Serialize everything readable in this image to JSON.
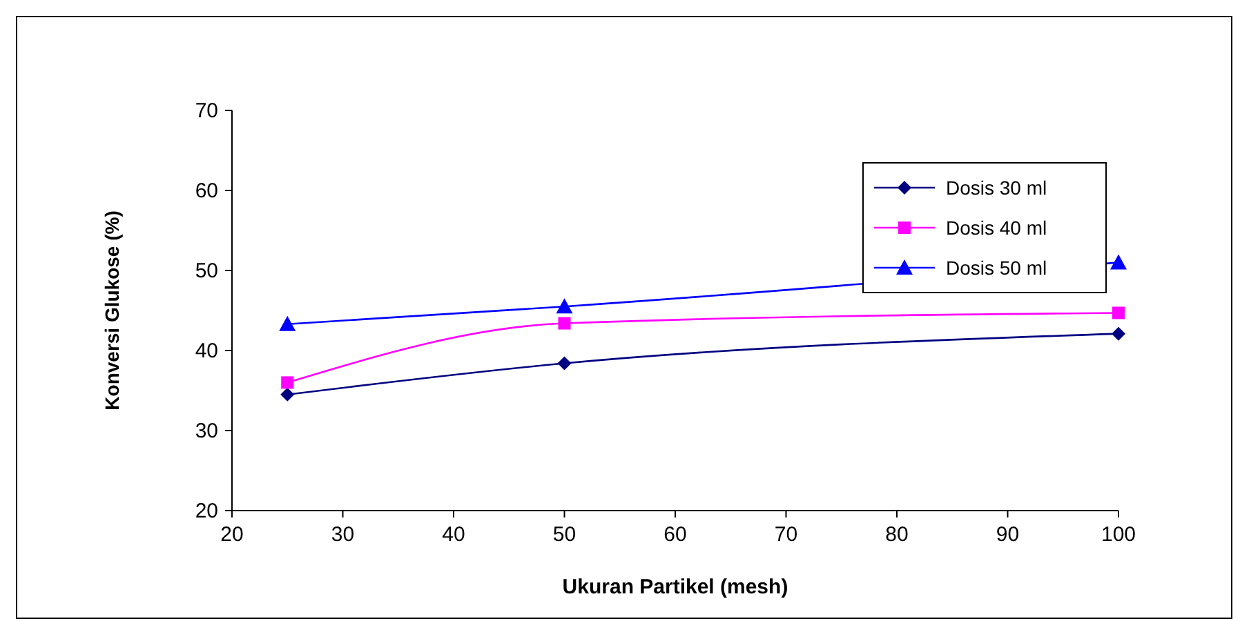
{
  "chart_data": {
    "type": "line",
    "xlabel": "Ukuran Partikel (mesh)",
    "ylabel": "Konversi Glukose (%)",
    "x": [
      25,
      50,
      100
    ],
    "series": [
      {
        "name": "Dosis 30 ml",
        "color": "#000080",
        "marker": "diamond",
        "values": [
          34.5,
          38.4,
          42.1
        ]
      },
      {
        "name": "Dosis 40 ml",
        "color": "#ff00ff",
        "marker": "square",
        "values": [
          36.0,
          43.4,
          44.7
        ]
      },
      {
        "name": "Dosis 50 ml",
        "color": "#0000ff",
        "marker": "triangle",
        "values": [
          43.3,
          45.5,
          51.0
        ]
      }
    ],
    "xlim": [
      20,
      100
    ],
    "xticks": [
      20,
      30,
      40,
      50,
      60,
      70,
      80,
      90,
      100
    ],
    "ylim": [
      20,
      70
    ],
    "yticks": [
      20,
      30,
      40,
      50,
      60,
      70
    ],
    "grid": false,
    "legend": "top right",
    "line_style": "solid"
  }
}
